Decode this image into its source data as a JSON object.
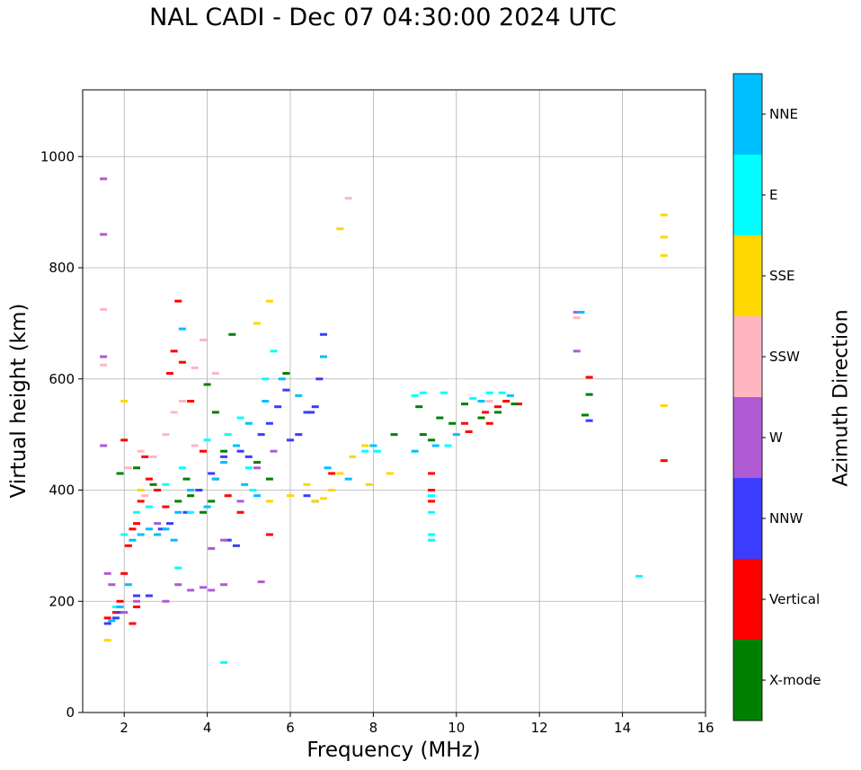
{
  "chart_data": {
    "type": "scatter",
    "title": "NAL CADI - Dec 07 04:30:00 2024 UTC",
    "xlabel": "Frequency (MHz)",
    "ylabel": "Virtual height (km)",
    "xlim": [
      1,
      16
    ],
    "ylim": [
      0,
      1120
    ],
    "xticks": [
      2,
      4,
      6,
      8,
      10,
      12,
      14,
      16
    ],
    "yticks": [
      0,
      200,
      400,
      600,
      800,
      1000
    ],
    "grid": true,
    "colorbar": {
      "label": "Azimuth Direction",
      "categories": [
        {
          "name": "X-mode",
          "color": "#008000"
        },
        {
          "name": "Vertical",
          "color": "#ff0000"
        },
        {
          "name": "NNW",
          "color": "#3c3cff"
        },
        {
          "name": "W",
          "color": "#b05ad6"
        },
        {
          "name": "SSW",
          "color": "#ffb6c1"
        },
        {
          "name": "SSE",
          "color": "#ffd700"
        },
        {
          "name": "E",
          "color": "#00ffff"
        },
        {
          "name": "NNE",
          "color": "#00bfff"
        }
      ]
    },
    "series": [
      {
        "name": "Vertical",
        "points": [
          [
            1.6,
            170
          ],
          [
            1.8,
            180
          ],
          [
            1.9,
            200
          ],
          [
            2.0,
            250
          ],
          [
            2.1,
            300
          ],
          [
            2.2,
            330
          ],
          [
            2.3,
            340
          ],
          [
            2.4,
            380
          ],
          [
            2.6,
            420
          ],
          [
            2.8,
            400
          ],
          [
            3.0,
            370
          ],
          [
            3.1,
            610
          ],
          [
            3.3,
            740
          ],
          [
            3.4,
            630
          ],
          [
            3.6,
            560
          ],
          [
            3.9,
            470
          ],
          [
            4.2,
            420
          ],
          [
            4.5,
            390
          ],
          [
            4.8,
            360
          ],
          [
            2.2,
            160
          ],
          [
            2.3,
            190
          ],
          [
            5.5,
            320
          ],
          [
            7.0,
            430
          ],
          [
            9.4,
            430
          ],
          [
            9.4,
            400
          ],
          [
            9.4,
            380
          ],
          [
            10.2,
            520
          ],
          [
            10.3,
            505
          ],
          [
            10.7,
            540
          ],
          [
            10.8,
            520
          ],
          [
            11.0,
            550
          ],
          [
            11.2,
            560
          ],
          [
            11.5,
            555
          ],
          [
            13.2,
            603
          ],
          [
            15.0,
            453
          ],
          [
            2.0,
            490
          ],
          [
            2.5,
            460
          ],
          [
            3.2,
            650
          ]
        ]
      },
      {
        "name": "X-mode",
        "points": [
          [
            1.9,
            430
          ],
          [
            2.3,
            440
          ],
          [
            2.7,
            410
          ],
          [
            3.3,
            380
          ],
          [
            3.6,
            390
          ],
          [
            3.9,
            360
          ],
          [
            4.0,
            590
          ],
          [
            4.2,
            540
          ],
          [
            4.4,
            470
          ],
          [
            4.6,
            680
          ],
          [
            5.2,
            450
          ],
          [
            5.5,
            420
          ],
          [
            5.9,
            610
          ],
          [
            9.1,
            550
          ],
          [
            9.2,
            500
          ],
          [
            9.4,
            490
          ],
          [
            9.6,
            530
          ],
          [
            9.9,
            520
          ],
          [
            10.2,
            555
          ],
          [
            10.6,
            530
          ],
          [
            11.0,
            540
          ],
          [
            11.4,
            555
          ],
          [
            13.2,
            572
          ],
          [
            13.1,
            535
          ],
          [
            4.1,
            380
          ],
          [
            3.5,
            420
          ],
          [
            8.5,
            500
          ]
        ]
      },
      {
        "name": "NNW",
        "points": [
          [
            1.6,
            160
          ],
          [
            1.8,
            170
          ],
          [
            1.9,
            180
          ],
          [
            2.3,
            210
          ],
          [
            2.6,
            210
          ],
          [
            2.9,
            330
          ],
          [
            3.1,
            340
          ],
          [
            3.5,
            360
          ],
          [
            3.8,
            400
          ],
          [
            4.1,
            430
          ],
          [
            4.4,
            460
          ],
          [
            4.8,
            470
          ],
          [
            5.0,
            460
          ],
          [
            5.3,
            500
          ],
          [
            5.5,
            520
          ],
          [
            5.7,
            550
          ],
          [
            5.9,
            580
          ],
          [
            6.0,
            490
          ],
          [
            6.2,
            500
          ],
          [
            6.4,
            540
          ],
          [
            6.5,
            540
          ],
          [
            6.6,
            550
          ],
          [
            6.7,
            600
          ],
          [
            6.8,
            680
          ],
          [
            6.6,
            380
          ],
          [
            6.4,
            390
          ],
          [
            4.5,
            310
          ],
          [
            4.7,
            300
          ],
          [
            13.0,
            720
          ],
          [
            13.2,
            525
          ]
        ]
      },
      {
        "name": "W",
        "points": [
          [
            1.5,
            480
          ],
          [
            1.5,
            640
          ],
          [
            1.5,
            860
          ],
          [
            1.5,
            960
          ],
          [
            1.6,
            250
          ],
          [
            1.7,
            230
          ],
          [
            2.0,
            180
          ],
          [
            2.3,
            200
          ],
          [
            3.3,
            230
          ],
          [
            3.6,
            220
          ],
          [
            3.9,
            225
          ],
          [
            4.1,
            220
          ],
          [
            4.4,
            230
          ],
          [
            4.1,
            295
          ],
          [
            4.4,
            310
          ],
          [
            5.3,
            235
          ],
          [
            4.8,
            380
          ],
          [
            5.2,
            440
          ],
          [
            5.6,
            470
          ],
          [
            12.9,
            650
          ],
          [
            12.9,
            720
          ],
          [
            3.0,
            200
          ],
          [
            2.8,
            340
          ]
        ]
      },
      {
        "name": "SSW",
        "points": [
          [
            1.5,
            725
          ],
          [
            1.5,
            625
          ],
          [
            2.1,
            440
          ],
          [
            2.4,
            470
          ],
          [
            2.7,
            460
          ],
          [
            3.0,
            500
          ],
          [
            3.2,
            540
          ],
          [
            3.4,
            560
          ],
          [
            3.7,
            620
          ],
          [
            3.9,
            670
          ],
          [
            4.2,
            610
          ],
          [
            7.4,
            925
          ],
          [
            10.8,
            560
          ],
          [
            12.9,
            710
          ],
          [
            2.5,
            390
          ],
          [
            3.7,
            480
          ]
        ]
      },
      {
        "name": "SSE",
        "points": [
          [
            1.6,
            130
          ],
          [
            2.0,
            560
          ],
          [
            2.4,
            400
          ],
          [
            5.2,
            700
          ],
          [
            5.5,
            740
          ],
          [
            6.0,
            390
          ],
          [
            6.4,
            410
          ],
          [
            6.6,
            380
          ],
          [
            6.8,
            385
          ],
          [
            7.0,
            400
          ],
          [
            7.2,
            430
          ],
          [
            7.5,
            460
          ],
          [
            7.8,
            480
          ],
          [
            7.9,
            410
          ],
          [
            8.4,
            430
          ],
          [
            7.2,
            870
          ],
          [
            15.0,
            895
          ],
          [
            15.0,
            855
          ],
          [
            15.0,
            822
          ],
          [
            15.0,
            552
          ],
          [
            5.5,
            380
          ]
        ]
      },
      {
        "name": "E",
        "points": [
          [
            1.8,
            190
          ],
          [
            2.0,
            320
          ],
          [
            2.3,
            360
          ],
          [
            2.6,
            370
          ],
          [
            3.0,
            410
          ],
          [
            3.3,
            260
          ],
          [
            3.4,
            440
          ],
          [
            4.0,
            490
          ],
          [
            4.4,
            90
          ],
          [
            4.5,
            500
          ],
          [
            4.8,
            530
          ],
          [
            5.1,
            400
          ],
          [
            5.4,
            600
          ],
          [
            5.6,
            650
          ],
          [
            7.8,
            470
          ],
          [
            8.1,
            470
          ],
          [
            9.0,
            570
          ],
          [
            9.2,
            575
          ],
          [
            9.4,
            320
          ],
          [
            9.4,
            310
          ],
          [
            9.4,
            360
          ],
          [
            9.4,
            390
          ],
          [
            9.7,
            575
          ],
          [
            9.8,
            480
          ],
          [
            10.4,
            565
          ],
          [
            10.8,
            575
          ],
          [
            11.1,
            575
          ],
          [
            14.4,
            245
          ],
          [
            5.0,
            440
          ],
          [
            3.6,
            360
          ]
        ]
      },
      {
        "name": "NNE",
        "points": [
          [
            1.7,
            165
          ],
          [
            1.9,
            190
          ],
          [
            2.1,
            230
          ],
          [
            2.2,
            310
          ],
          [
            2.4,
            320
          ],
          [
            2.6,
            330
          ],
          [
            2.8,
            320
          ],
          [
            3.0,
            330
          ],
          [
            3.2,
            310
          ],
          [
            3.3,
            360
          ],
          [
            3.4,
            690
          ],
          [
            3.6,
            400
          ],
          [
            4.0,
            370
          ],
          [
            4.2,
            420
          ],
          [
            4.4,
            450
          ],
          [
            4.7,
            480
          ],
          [
            5.0,
            520
          ],
          [
            5.2,
            390
          ],
          [
            5.4,
            560
          ],
          [
            5.8,
            600
          ],
          [
            6.2,
            570
          ],
          [
            6.9,
            440
          ],
          [
            7.4,
            420
          ],
          [
            8.0,
            480
          ],
          [
            9.0,
            470
          ],
          [
            9.5,
            480
          ],
          [
            10.0,
            500
          ],
          [
            10.6,
            560
          ],
          [
            11.3,
            570
          ],
          [
            13.0,
            720
          ],
          [
            6.8,
            640
          ],
          [
            4.9,
            410
          ]
        ]
      }
    ]
  }
}
